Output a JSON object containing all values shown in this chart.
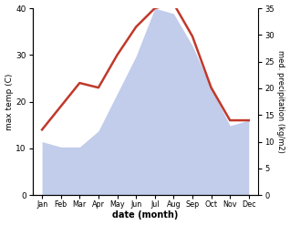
{
  "months": [
    "Jan",
    "Feb",
    "Mar",
    "Apr",
    "May",
    "Jun",
    "Jul",
    "Aug",
    "Sep",
    "Oct",
    "Nov",
    "Dec"
  ],
  "temperature": [
    14,
    19,
    24,
    23,
    30,
    36,
    40,
    41,
    34,
    23,
    16,
    16
  ],
  "precipitation": [
    10,
    9,
    9,
    12,
    19,
    26,
    35,
    34,
    28,
    20,
    13,
    14
  ],
  "temp_color": "#c0392b",
  "precip_color": "#b8c4e8",
  "temp_ylim": [
    0,
    40
  ],
  "precip_ylim": [
    0,
    35
  ],
  "temp_yticks": [
    0,
    10,
    20,
    30,
    40
  ],
  "precip_yticks": [
    0,
    5,
    10,
    15,
    20,
    25,
    30,
    35
  ],
  "xlabel": "date (month)",
  "ylabel_left": "max temp (C)",
  "ylabel_right": "med. precipitation (kg/m2)",
  "temp_linewidth": 1.8,
  "background_color": "#ffffff"
}
